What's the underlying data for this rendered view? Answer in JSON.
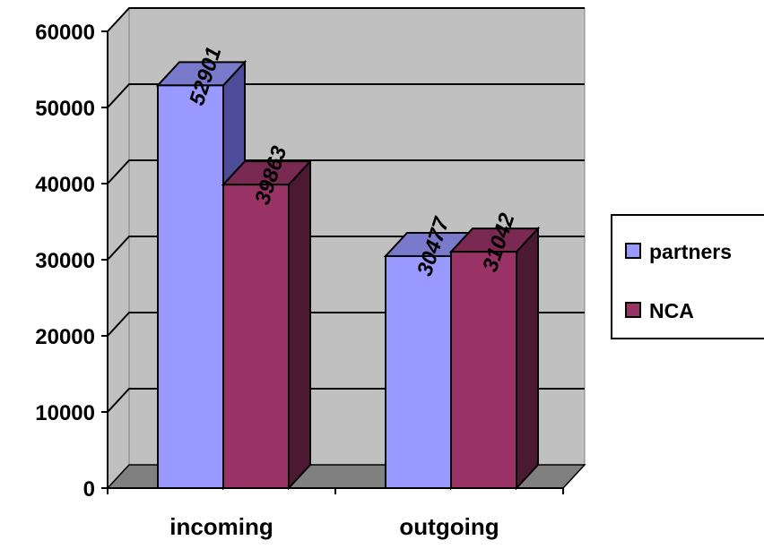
{
  "chart_data": {
    "type": "bar",
    "style": "3d-clustered-column",
    "categories": [
      "incoming",
      "outgoing"
    ],
    "series": [
      {
        "name": "partners",
        "values": [
          52901,
          30477
        ],
        "color": "#9999ff",
        "side_color": "#4c4c99",
        "top_color": "#7a7acc"
      },
      {
        "name": "NCA",
        "values": [
          39863,
          31042
        ],
        "color": "#993366",
        "side_color": "#4c1933",
        "top_color": "#7a2952"
      }
    ],
    "yticks": [
      "0",
      "10000",
      "20000",
      "30000",
      "40000",
      "50000",
      "60000"
    ],
    "ylim": [
      0,
      60000
    ],
    "data_labels": [
      [
        "52901",
        "30477"
      ],
      [
        "39863",
        "31042"
      ]
    ],
    "grid": true,
    "legend_position": "right",
    "wall_color": "#c0c0c0",
    "floor_color": "#808080",
    "title": "",
    "xlabel": "",
    "ylabel": ""
  }
}
